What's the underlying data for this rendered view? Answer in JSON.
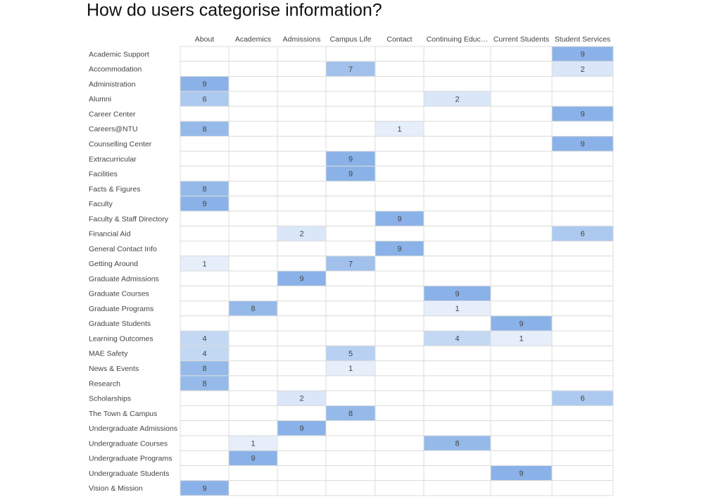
{
  "chart_data": {
    "type": "heatmap",
    "title": "How do users categorise information?",
    "x_categories": [
      "About",
      "Academics",
      "Admissions",
      "Campus Life",
      "Contact",
      "Continuing Educ…",
      "Current Students",
      "Student Services"
    ],
    "y_categories": [
      "Academic Support",
      "Accommodation",
      "Administration",
      "Alumni",
      "Career Center",
      "Careers@NTU",
      "Counselling Center",
      "Extracurricular",
      "Facilities",
      "Facts & Figures",
      "Faculty",
      "Faculty & Staff Directory",
      "Financial Aid",
      "General Contact Info",
      "Getting Around",
      "Graduate Admissions",
      "Graduate Courses",
      "Graduate Programs",
      "Graduate Students",
      "Learning Outcomes",
      "MAE Safety",
      "News & Events",
      "Research",
      "Scholarships",
      "The Town & Campus",
      "Undergraduate Admissions",
      "Undergraduate Courses",
      "Undergraduate Programs",
      "Undergraduate Students",
      "Vision & Mission"
    ],
    "values": [
      [
        null,
        null,
        null,
        null,
        null,
        null,
        null,
        9
      ],
      [
        null,
        null,
        null,
        7,
        null,
        null,
        null,
        2
      ],
      [
        9,
        null,
        null,
        null,
        null,
        null,
        null,
        null
      ],
      [
        6,
        null,
        null,
        null,
        null,
        2,
        null,
        null
      ],
      [
        null,
        null,
        null,
        null,
        null,
        null,
        null,
        9
      ],
      [
        8,
        null,
        null,
        null,
        1,
        null,
        null,
        null
      ],
      [
        null,
        null,
        null,
        null,
        null,
        null,
        null,
        9
      ],
      [
        null,
        null,
        null,
        9,
        null,
        null,
        null,
        null
      ],
      [
        null,
        null,
        null,
        9,
        null,
        null,
        null,
        null
      ],
      [
        8,
        null,
        null,
        null,
        null,
        null,
        null,
        null
      ],
      [
        9,
        null,
        null,
        null,
        null,
        null,
        null,
        null
      ],
      [
        null,
        null,
        null,
        null,
        9,
        null,
        null,
        null
      ],
      [
        null,
        null,
        2,
        null,
        null,
        null,
        null,
        6
      ],
      [
        null,
        null,
        null,
        null,
        9,
        null,
        null,
        null
      ],
      [
        1,
        null,
        null,
        7,
        null,
        null,
        null,
        null
      ],
      [
        null,
        null,
        9,
        null,
        null,
        null,
        null,
        null
      ],
      [
        null,
        null,
        null,
        null,
        null,
        9,
        null,
        null
      ],
      [
        null,
        8,
        null,
        null,
        null,
        1,
        null,
        null
      ],
      [
        null,
        null,
        null,
        null,
        null,
        null,
        9,
        null
      ],
      [
        4,
        null,
        null,
        null,
        null,
        4,
        1,
        null
      ],
      [
        4,
        null,
        null,
        5,
        null,
        null,
        null,
        null
      ],
      [
        8,
        null,
        null,
        1,
        null,
        null,
        null,
        null
      ],
      [
        8,
        null,
        null,
        null,
        null,
        null,
        null,
        null
      ],
      [
        null,
        null,
        2,
        null,
        null,
        null,
        null,
        6
      ],
      [
        null,
        null,
        null,
        8,
        null,
        null,
        null,
        null
      ],
      [
        null,
        null,
        9,
        null,
        null,
        null,
        null,
        null
      ],
      [
        null,
        1,
        null,
        null,
        null,
        8,
        null,
        null
      ],
      [
        null,
        9,
        null,
        null,
        null,
        null,
        null,
        null
      ],
      [
        null,
        null,
        null,
        null,
        null,
        null,
        9,
        null
      ],
      [
        9,
        null,
        null,
        null,
        null,
        null,
        null,
        null
      ]
    ],
    "color": "#8ab2e8"
  }
}
